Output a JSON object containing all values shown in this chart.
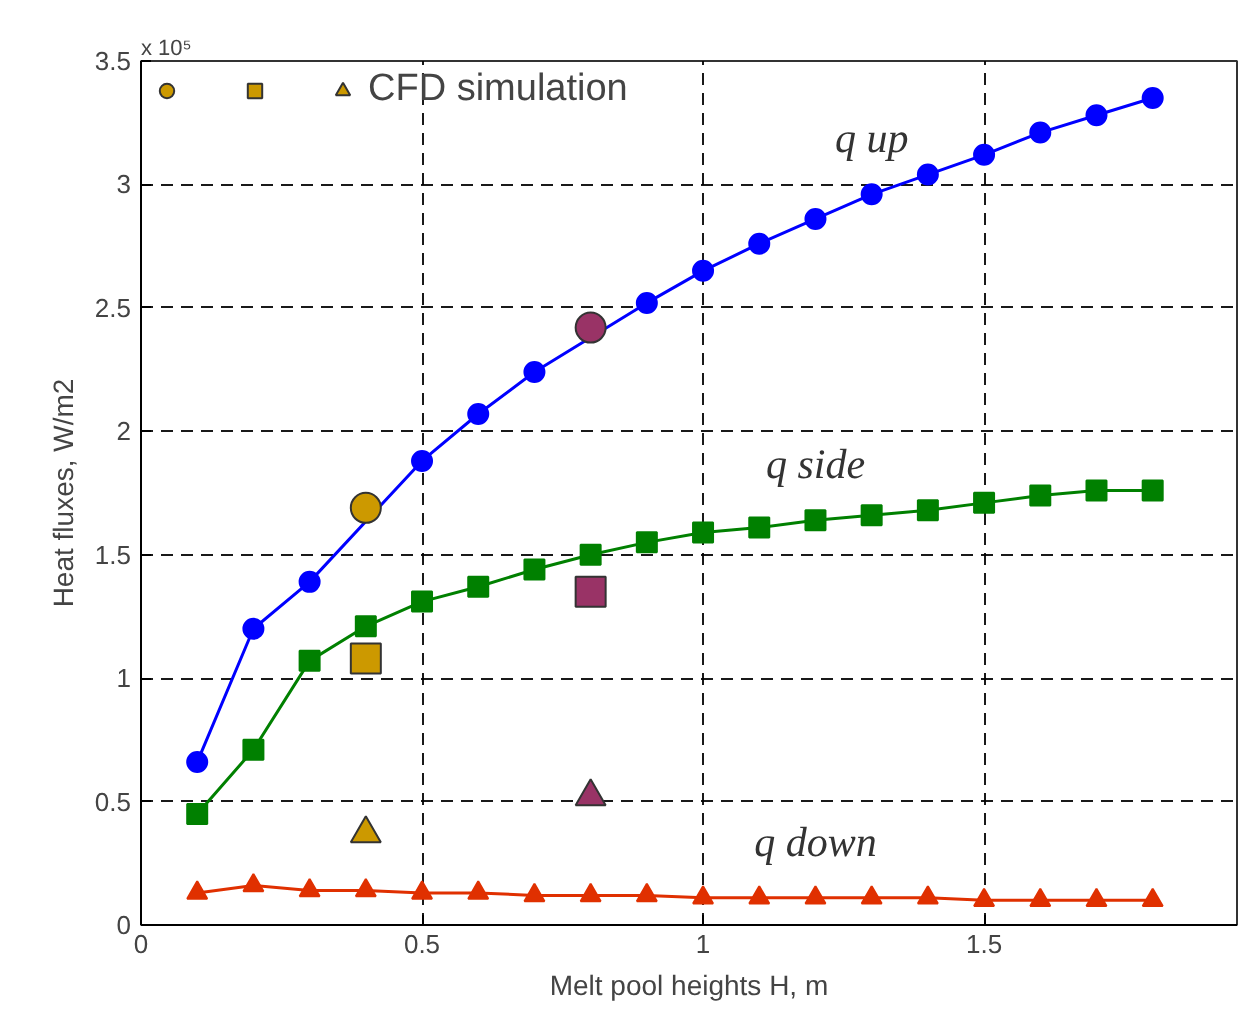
{
  "chart_data": {
    "type": "line",
    "xlabel": "Melt pool heights H, m",
    "ylabel": "Heat fluxes, W/m2",
    "xlim": [
      0,
      1.95
    ],
    "xticks": [
      0,
      0.5,
      1,
      1.5
    ],
    "ylim": [
      0,
      3.5
    ],
    "yticks": [
      0,
      0.5,
      1,
      1.5,
      2,
      2.5,
      3,
      3.5
    ],
    "grid": true,
    "legend": "top left",
    "line_style": "solid",
    "annotations": [
      "x 10⁵"
    ],
    "series": [
      {
        "name": "q up",
        "marker": "circle",
        "color": "#0000ff",
        "x": [
          0.1,
          0.2,
          0.3,
          0.4,
          0.5,
          0.6,
          0.7,
          0.8,
          0.9,
          1.0,
          1.1,
          1.2,
          1.3,
          1.4,
          1.5,
          1.6,
          1.7,
          1.8
        ],
        "values": [
          0.66,
          1.2,
          1.39,
          null,
          1.88,
          2.07,
          2.24,
          null,
          2.52,
          2.65,
          2.76,
          2.86,
          2.96,
          3.04,
          3.12,
          3.21,
          3.28,
          3.35
        ]
      },
      {
        "name": "q side",
        "marker": "square",
        "color": "#008000",
        "x": [
          0.1,
          0.2,
          0.3,
          0.4,
          0.5,
          0.6,
          0.7,
          0.8,
          0.9,
          1.0,
          1.1,
          1.2,
          1.3,
          1.4,
          1.5,
          1.6,
          1.7,
          1.8
        ],
        "values": [
          0.45,
          0.71,
          1.07,
          1.21,
          1.31,
          1.37,
          1.44,
          1.5,
          1.55,
          1.59,
          1.61,
          1.64,
          1.66,
          1.68,
          1.71,
          1.74,
          1.76,
          1.76
        ]
      },
      {
        "name": "q down",
        "marker": "triangle",
        "color": "#e03000",
        "x": [
          0.1,
          0.2,
          0.3,
          0.4,
          0.5,
          0.6,
          0.7,
          0.8,
          0.9,
          1.0,
          1.1,
          1.2,
          1.3,
          1.4,
          1.5,
          1.6,
          1.7,
          1.8
        ],
        "values": [
          0.13,
          0.16,
          0.14,
          0.14,
          0.13,
          0.13,
          0.12,
          0.12,
          0.12,
          0.11,
          0.11,
          0.11,
          0.11,
          0.11,
          0.1,
          0.1,
          0.1,
          0.1
        ]
      },
      {
        "type": "scatter",
        "marker": "circle",
        "color": "#cc9900",
        "x": [
          0.4
        ],
        "values": [
          1.69
        ]
      },
      {
        "type": "scatter",
        "marker": "square",
        "color": "#cc9900",
        "x": [
          0.4
        ],
        "values": [
          1.08
        ]
      },
      {
        "type": "scatter",
        "marker": "triangle",
        "color": "#cc9900",
        "name": "CFD simulation",
        "x": [
          0.4
        ],
        "values": [
          0.37
        ]
      },
      {
        "type": "scatter",
        "marker": "circle",
        "color": "#993366",
        "x": [
          0.8
        ],
        "values": [
          2.42
        ]
      },
      {
        "type": "scatter",
        "marker": "square",
        "color": "#993366",
        "x": [
          0.8
        ],
        "values": [
          1.35
        ]
      },
      {
        "type": "scatter",
        "marker": "triangle",
        "color": "#993366",
        "x": [
          0.8
        ],
        "values": [
          0.52
        ]
      }
    ]
  }
}
